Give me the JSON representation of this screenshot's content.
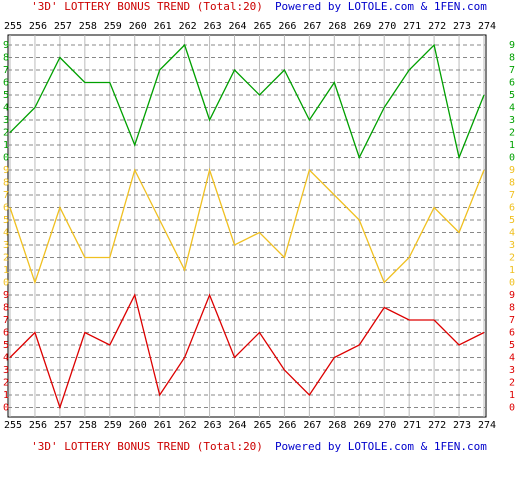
{
  "chart_data": {
    "type": "line",
    "title": "'3D' LOTTERY BONUS TREND (Total:20)",
    "subtitle": "Powered by LOTOLE.com & 1FEN.com",
    "title_color": "#cc0000",
    "subtitle_color": "#0000cc",
    "categories": [
      "255",
      "256",
      "257",
      "258",
      "259",
      "260",
      "261",
      "262",
      "263",
      "264",
      "265",
      "266",
      "267",
      "268",
      "269",
      "270",
      "271",
      "272",
      "273",
      "274"
    ],
    "ylim": [
      0,
      9
    ],
    "yticks": [
      0,
      1,
      2,
      3,
      4,
      5,
      6,
      7,
      8,
      9
    ],
    "grid": true,
    "series": [
      {
        "color": "#00a000",
        "values": [
          2,
          4,
          8,
          6,
          6,
          1,
          7,
          9,
          3,
          7,
          5,
          7,
          3,
          6,
          0,
          4,
          7,
          9,
          0,
          5
        ]
      },
      {
        "color": "#f0c020",
        "values": [
          6,
          0,
          6,
          2,
          2,
          9,
          5,
          1,
          9,
          3,
          4,
          2,
          9,
          7,
          5,
          0,
          2,
          6,
          4,
          9
        ]
      },
      {
        "color": "#dd0000",
        "values": [
          4,
          6,
          0,
          6,
          5,
          9,
          1,
          4,
          9,
          4,
          6,
          3,
          1,
          4,
          5,
          8,
          7,
          7,
          5,
          6
        ]
      }
    ]
  }
}
